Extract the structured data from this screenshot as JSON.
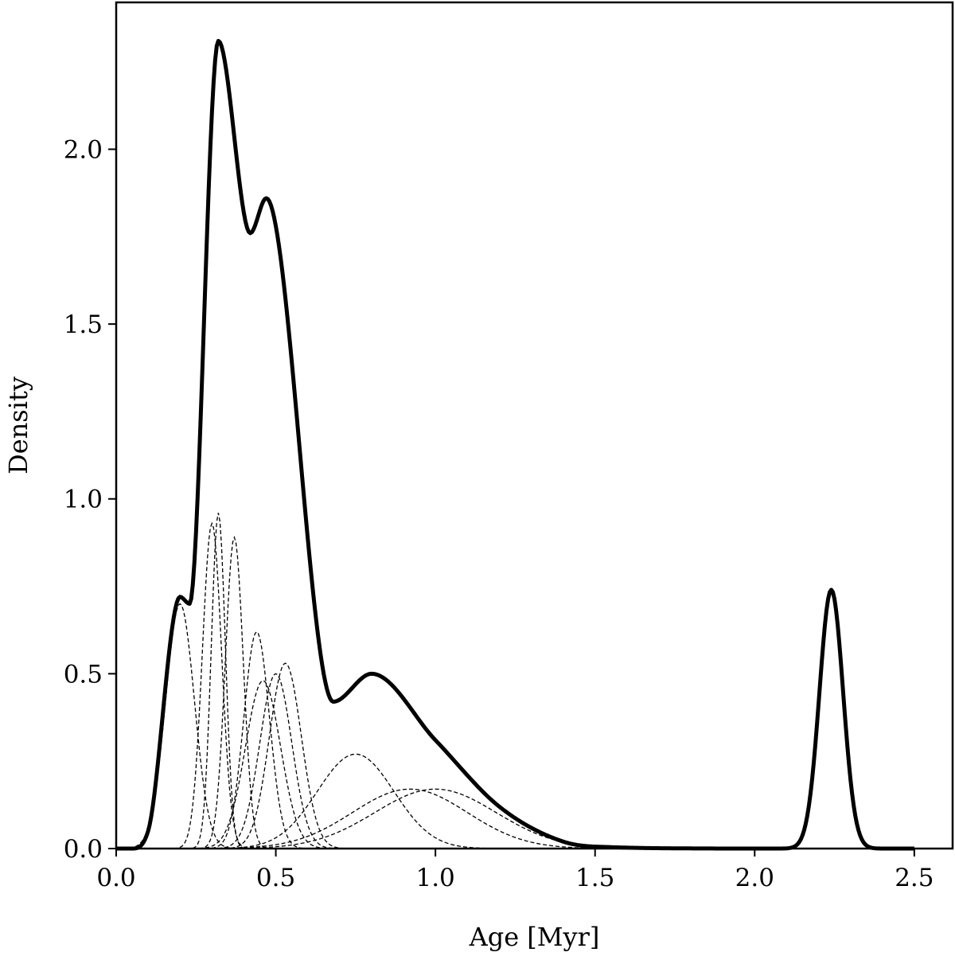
{
  "chart_data": {
    "type": "line",
    "title": "",
    "xlabel": "Age [Myr]",
    "ylabel": "Density",
    "xlim": [
      0.0,
      2.62
    ],
    "ylim": [
      0.0,
      2.42
    ],
    "xticks": [
      0.0,
      0.5,
      1.0,
      1.5,
      2.0,
      2.5
    ],
    "xtick_labels": [
      "0.0",
      "0.5",
      "1.0",
      "1.5",
      "2.0",
      "2.5"
    ],
    "yticks": [
      0.0,
      0.5,
      1.0,
      1.5,
      2.0
    ],
    "ytick_labels": [
      "0.0",
      "0.5",
      "1.0",
      "1.5",
      "2.0"
    ],
    "grid": false,
    "legend": "none",
    "x_sampling": {
      "start": 0.0,
      "end": 2.5,
      "step": 0.005
    },
    "components": [
      {
        "mean": 0.2,
        "sd": 0.045,
        "peak": 0.7
      },
      {
        "mean": 0.3,
        "sd": 0.03,
        "peak": 0.93
      },
      {
        "mean": 0.32,
        "sd": 0.022,
        "peak": 0.96
      },
      {
        "mean": 0.37,
        "sd": 0.028,
        "peak": 0.89
      },
      {
        "mean": 0.44,
        "sd": 0.04,
        "peak": 0.62
      },
      {
        "mean": 0.46,
        "sd": 0.055,
        "peak": 0.48
      },
      {
        "mean": 0.5,
        "sd": 0.05,
        "peak": 0.5
      },
      {
        "mean": 0.53,
        "sd": 0.05,
        "peak": 0.53
      },
      {
        "mean": 0.75,
        "sd": 0.12,
        "peak": 0.27
      },
      {
        "mean": 0.92,
        "sd": 0.18,
        "peak": 0.17
      },
      {
        "mean": 1.0,
        "sd": 0.19,
        "peak": 0.17
      }
    ],
    "series": [
      {
        "role": "total",
        "style": "solid-thick",
        "peaks": [
          {
            "x": 0.2,
            "y": 0.72
          },
          {
            "x": 0.32,
            "y": 2.31
          },
          {
            "x": 0.47,
            "y": 1.86
          },
          {
            "x": 0.8,
            "y": 0.5
          },
          {
            "x": 2.24,
            "y": 0.74
          }
        ],
        "troughs": [
          {
            "x": 0.23,
            "y": 0.7
          },
          {
            "x": 0.42,
            "y": 1.76
          },
          {
            "x": 0.68,
            "y": 0.42
          }
        ]
      }
    ],
    "isolated_peak": {
      "mean": 2.24,
      "sd": 0.037,
      "peak": 0.74
    },
    "colors": {
      "total": "#000000",
      "components": "#000000",
      "axes": "#000000"
    }
  }
}
